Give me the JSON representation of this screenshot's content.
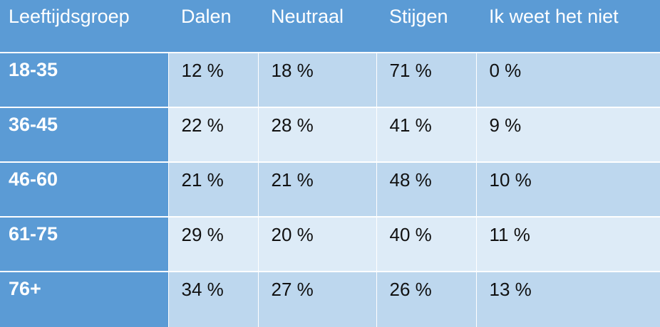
{
  "table": {
    "headers": [
      "Leeftijdsgroep",
      "Dalen",
      "Neutraal",
      "Stijgen",
      "Ik weet het niet"
    ],
    "rows": [
      {
        "group": "18-35",
        "cells": [
          "12 %",
          "18 %",
          "71 %",
          "0 %"
        ]
      },
      {
        "group": "36-45",
        "cells": [
          "22 %",
          "28 %",
          "41 %",
          "9 %"
        ]
      },
      {
        "group": "46-60",
        "cells": [
          "21 %",
          "21 %",
          "48 %",
          "10 %"
        ]
      },
      {
        "group": "61-75",
        "cells": [
          "29 %",
          "20 %",
          "40 %",
          "11 %"
        ]
      },
      {
        "group": "76+",
        "cells": [
          "34 %",
          "27 %",
          "26 %",
          "13 %"
        ]
      }
    ]
  },
  "colors": {
    "header": "#5b9bd5",
    "row_light": "#bdd7ee",
    "row_lighter": "#ddebf7"
  }
}
